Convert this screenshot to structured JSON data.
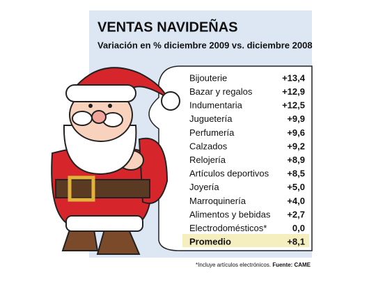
{
  "header": {
    "title": "VENTAS NAVIDEÑAS",
    "subtitle": "Variación en % diciembre 2009 vs. diciembre 2008"
  },
  "table": {
    "rows": [
      [
        "Bijouterie",
        "+13,4"
      ],
      [
        "Bazar y regalos",
        "+12,9"
      ],
      [
        "Indumentaria",
        "+12,5"
      ],
      [
        "Juguetería",
        "+9,9"
      ],
      [
        "Perfumería",
        "+9,6"
      ],
      [
        "Calzados",
        "+9,2"
      ],
      [
        "Relojería",
        "+8,9"
      ],
      [
        "Artículos deportivos",
        "+8,5"
      ],
      [
        "Joyería",
        "+5,0"
      ],
      [
        "Marroquinería",
        "+4,0"
      ],
      [
        "Alimentos y bebidas",
        "+2,7"
      ],
      [
        "Electrodomésticos*",
        "0,0"
      ]
    ],
    "total": [
      "Promedio",
      "+8,1"
    ]
  },
  "footnote": {
    "note": "*Incluye artículos electrónicos.",
    "source": "Fuente: CAME"
  }
}
